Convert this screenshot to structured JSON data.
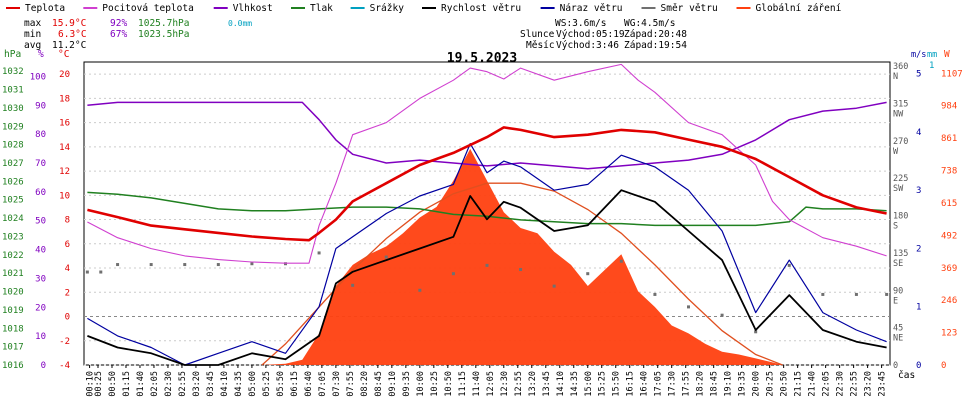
{
  "title": "19.5.2023",
  "legend": [
    {
      "label": "Teplota",
      "color": "#e00000"
    },
    {
      "label": "Pocitová teplota",
      "color": "#d040d0"
    },
    {
      "label": "Vlhkost",
      "color": "#8000c0"
    },
    {
      "label": "Tlak",
      "color": "#208020"
    },
    {
      "label": "Srážky",
      "color": "#00a0c0"
    },
    {
      "label": "Rychlost větru",
      "color": "#000000"
    },
    {
      "label": "Náraz větru",
      "color": "#0000a0"
    },
    {
      "label": "Směr větru",
      "color": "#707070"
    },
    {
      "label": "Globální záření",
      "color": "#ff4010"
    }
  ],
  "stats": {
    "max": {
      "label": "max",
      "temp": "15.9°C",
      "hum": "92%",
      "press": "1025.7hPa",
      "rain": "0.0mm"
    },
    "min": {
      "label": "min",
      "temp": "6.3°C",
      "hum": "67%",
      "press": "1023.5hPa"
    },
    "avg": {
      "label": "avg",
      "temp": "11.2°C"
    }
  },
  "wind_info": {
    "ws": "WS:3.6m/s",
    "wg": "WG:4.5m/s"
  },
  "sun_info": {
    "label": "Slunce",
    "rise": "Východ:05:19",
    "set": "Západ:20:48"
  },
  "moon_info": {
    "label": "Měsíc",
    "rise": "Východ:3:46",
    "set": "Západ:19:54"
  },
  "axes": {
    "hpa": {
      "unit": "hPa",
      "ticks": [
        "1032",
        "1031",
        "1030",
        "1029",
        "1028",
        "1027",
        "1026",
        "1025",
        "1024",
        "1023",
        "1022",
        "1021",
        "1020",
        "1019",
        "1018",
        "1017",
        "1016"
      ]
    },
    "pct": {
      "unit": "%",
      "ticks": [
        "100",
        "90",
        "80",
        "70",
        "60",
        "50",
        "40",
        "30",
        "20",
        "10",
        "0"
      ]
    },
    "temp": {
      "unit": "°C",
      "ticks": [
        "20",
        "18",
        "16",
        "14",
        "12",
        "10",
        "8",
        "6",
        "4",
        "2",
        "0",
        "-2",
        "-4"
      ]
    },
    "dir": {
      "ticks": [
        "360",
        "N",
        "315",
        "NW",
        "270",
        "W",
        "225",
        "SW",
        "180",
        "S",
        "135",
        "SE",
        "90",
        "E",
        "45",
        "NE",
        "0"
      ]
    },
    "ms": {
      "unit": "m/s",
      "ticks": [
        "5",
        "4",
        "3",
        "2",
        "1",
        "0"
      ]
    },
    "mm": {
      "unit": "mm",
      "ticks": [
        "1"
      ]
    },
    "wm": {
      "unit": "W",
      "ticks": [
        "1107",
        "984",
        "861",
        "738",
        "615",
        "492",
        "369",
        "246",
        "123",
        "0"
      ]
    },
    "time": {
      "unit": "čas",
      "ticks": [
        "00:10",
        "00:25",
        "00:50",
        "01:15",
        "01:40",
        "02:05",
        "02:30",
        "02:55",
        "03:20",
        "03:45",
        "04:10",
        "04:35",
        "05:00",
        "05:25",
        "05:50",
        "06:15",
        "06:40",
        "07:05",
        "07:30",
        "07:55",
        "08:20",
        "08:45",
        "09:10",
        "09:35",
        "10:00",
        "10:25",
        "10:50",
        "11:15",
        "11:40",
        "12:05",
        "12:30",
        "12:55",
        "13:20",
        "13:45",
        "14:10",
        "14:35",
        "15:00",
        "15:25",
        "15:50",
        "16:15",
        "16:40",
        "17:05",
        "17:30",
        "17:55",
        "18:20",
        "18:45",
        "19:10",
        "19:35",
        "20:00",
        "20:25",
        "20:50",
        "21:15",
        "21:40",
        "22:05",
        "22:30",
        "22:55",
        "23:20",
        "23:45"
      ]
    }
  },
  "chart_data": {
    "type": "line",
    "title": "19.5.2023",
    "x_unit": "hour of day",
    "x_range": [
      0,
      24
    ],
    "series": [
      {
        "name": "Teplota",
        "unit": "°C",
        "color": "#e00000",
        "x": [
          0.1,
          1,
          2,
          3,
          4,
          5,
          6,
          6.7,
          7,
          7.5,
          8,
          9,
          10,
          11,
          12,
          12.5,
          13,
          14,
          15,
          16,
          17,
          18,
          19,
          20,
          21,
          22,
          23,
          23.9
        ],
        "y": [
          8.8,
          8.2,
          7.5,
          7.2,
          6.9,
          6.6,
          6.4,
          6.3,
          6.9,
          8.0,
          9.5,
          11,
          12.5,
          13.5,
          14.8,
          15.6,
          15.4,
          14.8,
          15.0,
          15.4,
          15.2,
          14.6,
          14.0,
          13.0,
          11.5,
          10.0,
          9.0,
          8.5
        ]
      },
      {
        "name": "Pocitová teplota",
        "unit": "°C",
        "color": "#d040d0",
        "x": [
          0.1,
          1,
          2,
          3,
          4,
          5,
          6,
          6.7,
          7,
          7.5,
          8,
          9,
          10,
          11,
          11.5,
          12,
          12.5,
          13,
          14,
          15,
          16,
          16.5,
          17,
          18,
          19,
          20,
          20.5,
          21,
          22,
          23,
          23.9
        ],
        "y": [
          7.8,
          6.5,
          5.6,
          5.0,
          4.7,
          4.5,
          4.4,
          4.4,
          7.5,
          11,
          15,
          16,
          18,
          19.5,
          20.5,
          20.2,
          19.6,
          20.5,
          19.5,
          20.2,
          20.8,
          19.5,
          18.5,
          16,
          15,
          12.5,
          9.5,
          8,
          6.5,
          5.8,
          5.0
        ]
      },
      {
        "name": "Vlhkost",
        "unit": "%",
        "color": "#8000c0",
        "x": [
          0.1,
          1,
          2,
          3,
          4,
          5,
          6,
          6.5,
          7,
          7.5,
          8,
          9,
          10,
          11,
          12,
          13,
          14,
          15,
          16,
          17,
          18,
          19,
          20,
          21,
          22,
          23,
          23.9
        ],
        "y": [
          90,
          91,
          91,
          91,
          91,
          91,
          91,
          91,
          85,
          78,
          73,
          70,
          71,
          70,
          69,
          70,
          69,
          68,
          69,
          70,
          71,
          73,
          78,
          85,
          88,
          89,
          91
        ]
      },
      {
        "name": "Tlak",
        "unit": "hPa",
        "color": "#208020",
        "x": [
          0.1,
          1,
          2,
          3,
          4,
          5,
          6,
          7,
          8,
          9,
          10,
          11,
          12,
          13,
          14,
          15,
          16,
          17,
          18,
          19,
          20,
          21,
          21.5,
          22,
          23,
          23.9
        ],
        "y": [
          1025.4,
          1025.3,
          1025.1,
          1024.8,
          1024.5,
          1024.4,
          1024.4,
          1024.5,
          1024.6,
          1024.6,
          1024.5,
          1024.2,
          1024.1,
          1023.9,
          1023.8,
          1023.7,
          1023.7,
          1023.6,
          1023.6,
          1023.6,
          1023.6,
          1023.8,
          1024.6,
          1024.5,
          1024.5,
          1024.4
        ]
      },
      {
        "name": "Rychlost větru",
        "unit": "m/s",
        "color": "#000000",
        "x": [
          0.1,
          1,
          2,
          3,
          4,
          5,
          6,
          7,
          7.5,
          8,
          9,
          10,
          11,
          11.5,
          12,
          12.5,
          13,
          14,
          15,
          16,
          17,
          18,
          19,
          20,
          21,
          22,
          23,
          23.9
        ],
        "y": [
          0.5,
          0.3,
          0.2,
          0.0,
          0.0,
          0.2,
          0.1,
          0.5,
          1.4,
          1.6,
          1.8,
          2.0,
          2.2,
          2.9,
          2.5,
          2.8,
          2.7,
          2.3,
          2.4,
          3.0,
          2.8,
          2.3,
          1.8,
          0.6,
          1.2,
          0.6,
          0.4,
          0.3
        ]
      },
      {
        "name": "Náraz větru",
        "unit": "m/s",
        "color": "#0000a0",
        "x": [
          0.1,
          1,
          2,
          3,
          4,
          5,
          6,
          7,
          7.5,
          8,
          9,
          10,
          11,
          11.5,
          12,
          12.5,
          13,
          14,
          15,
          16,
          17,
          18,
          19,
          20,
          21,
          22,
          23,
          23.9
        ],
        "y": [
          0.8,
          0.5,
          0.3,
          0.0,
          0.2,
          0.4,
          0.2,
          1.0,
          2.0,
          2.2,
          2.6,
          2.9,
          3.1,
          3.8,
          3.3,
          3.5,
          3.4,
          3.0,
          3.1,
          3.6,
          3.4,
          3.0,
          2.3,
          0.9,
          1.8,
          0.9,
          0.6,
          0.4
        ]
      },
      {
        "name": "Směr větru",
        "unit": "°",
        "color": "#707070",
        "x": [
          0.1,
          0.5,
          1,
          2,
          3,
          4,
          5,
          6,
          7,
          8,
          9,
          10,
          11,
          12,
          13,
          14,
          15,
          16,
          17,
          18,
          19,
          20,
          21,
          22,
          23,
          23.9
        ],
        "y": [
          112,
          112,
          121,
          121,
          121,
          121,
          122,
          122,
          135,
          96,
          130,
          90,
          110,
          120,
          115,
          95,
          110,
          125,
          85,
          70,
          60,
          40,
          120,
          85,
          85,
          85
        ]
      },
      {
        "name": "Globální záření",
        "unit": "W/m²",
        "color": "#ff4010",
        "x": [
          5.3,
          6,
          6.5,
          7,
          7.5,
          8,
          8.5,
          9,
          9.5,
          10,
          10.5,
          11,
          11.5,
          12,
          12.5,
          13,
          13.5,
          14,
          14.5,
          15,
          15.5,
          16,
          16.5,
          17,
          17.5,
          18,
          18.5,
          19,
          19.5,
          20,
          20.5,
          20.8
        ],
        "y": [
          0,
          5,
          20,
          120,
          300,
          380,
          420,
          450,
          500,
          560,
          600,
          700,
          820,
          700,
          580,
          520,
          500,
          430,
          380,
          300,
          360,
          420,
          280,
          220,
          150,
          120,
          80,
          50,
          40,
          25,
          10,
          0
        ]
      },
      {
        "name": "Teoretické záření",
        "unit": "W/m²",
        "color": "#e05020",
        "x": [
          5.3,
          6,
          7,
          8,
          9,
          10,
          11,
          12,
          13,
          14,
          15,
          16,
          17,
          18,
          19,
          20,
          20.8
        ],
        "y": [
          0,
          80,
          220,
          360,
          480,
          580,
          650,
          690,
          690,
          660,
          590,
          500,
          380,
          250,
          130,
          40,
          0
        ]
      }
    ],
    "ylim": {
      "temp": [
        -4,
        21
      ],
      "pct": [
        0,
        105
      ],
      "hpa": [
        1016,
        1032.5
      ],
      "ms": [
        0,
        5.2
      ],
      "dir": [
        0,
        365
      ],
      "wm": [
        0,
        1150
      ]
    },
    "grid": true,
    "legend": "top"
  }
}
